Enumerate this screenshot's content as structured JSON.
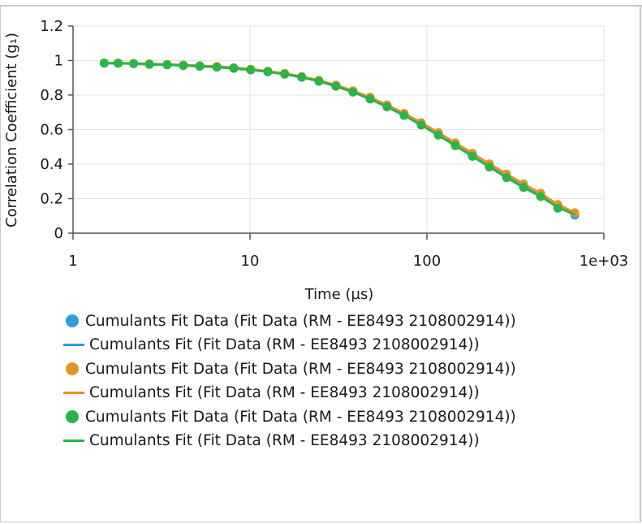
{
  "chart_data": {
    "type": "scatter",
    "title": "",
    "xlabel": "Time (µs)",
    "ylabel": "Correlation Coefficient (g₁)",
    "x_scale": "log",
    "xlim": [
      1,
      1000
    ],
    "ylim": [
      0,
      1.2
    ],
    "x_ticks": [
      1,
      10,
      100,
      1000
    ],
    "x_tick_labels": [
      "1",
      "10",
      "100",
      "1e+03"
    ],
    "y_ticks": [
      0,
      0.2,
      0.4,
      0.6,
      0.8,
      1,
      1.2
    ],
    "y_tick_labels": [
      "0",
      "0.2",
      "0.4",
      "0.6",
      "0.8",
      "1",
      "1.2"
    ],
    "grid": true,
    "legend_position": "bottom",
    "series": [
      {
        "name": "Cumulants Fit Data (Fit Data (RM - EE8493 2108002914))",
        "kind": "points",
        "color": "#2e9fd8",
        "x": [
          1.5,
          1.8,
          2.2,
          2.7,
          3.4,
          4.2,
          5.2,
          6.5,
          8.1,
          10.1,
          12.6,
          15.7,
          19.6,
          24.5,
          30.6,
          38.2,
          47.7,
          59.5,
          74.3,
          92.8,
          115.9,
          144.7,
          180.7,
          225.6,
          281.8,
          351.8,
          439.3,
          548.6,
          685
        ],
        "y": [
          0.985,
          0.984,
          0.982,
          0.979,
          0.976,
          0.972,
          0.968,
          0.963,
          0.956,
          0.947,
          0.936,
          0.922,
          0.904,
          0.881,
          0.853,
          0.819,
          0.78,
          0.736,
          0.686,
          0.631,
          0.573,
          0.512,
          0.45,
          0.389,
          0.329,
          0.272,
          0.22,
          0.165,
          0.105
        ]
      },
      {
        "name": "Cumulants Fit (Fit Data (RM - EE8493 2108002914))",
        "kind": "line",
        "color": "#2e9fd8",
        "x": [
          1.5,
          1.8,
          2.2,
          2.7,
          3.4,
          4.2,
          5.2,
          6.5,
          8.1,
          10.1,
          12.6,
          15.7,
          19.6,
          24.5,
          30.6,
          38.2,
          47.7,
          59.5,
          74.3,
          92.8,
          115.9,
          144.7,
          180.7,
          225.6,
          281.8,
          351.8,
          439.3,
          548.6,
          685
        ],
        "y": [
          0.985,
          0.984,
          0.982,
          0.979,
          0.976,
          0.972,
          0.968,
          0.963,
          0.956,
          0.947,
          0.936,
          0.922,
          0.904,
          0.881,
          0.853,
          0.819,
          0.78,
          0.736,
          0.686,
          0.631,
          0.573,
          0.512,
          0.45,
          0.389,
          0.329,
          0.272,
          0.22,
          0.165,
          0.105
        ]
      },
      {
        "name": "Cumulants Fit Data (Fit Data (RM - EE8493 2108002914))",
        "kind": "points",
        "color": "#e0952a",
        "x": [
          1.5,
          1.8,
          2.2,
          2.7,
          3.4,
          4.2,
          5.2,
          6.5,
          8.1,
          10.1,
          12.6,
          15.7,
          19.6,
          24.5,
          30.6,
          38.2,
          47.7,
          59.5,
          74.3,
          92.8,
          115.9,
          144.7,
          180.7,
          225.6,
          281.8,
          351.8,
          439.3,
          548.6,
          685
        ],
        "y": [
          0.986,
          0.985,
          0.983,
          0.981,
          0.978,
          0.974,
          0.97,
          0.965,
          0.958,
          0.949,
          0.938,
          0.925,
          0.907,
          0.885,
          0.858,
          0.825,
          0.787,
          0.743,
          0.694,
          0.64,
          0.583,
          0.523,
          0.462,
          0.401,
          0.342,
          0.285,
          0.231,
          0.166,
          0.118
        ]
      },
      {
        "name": "Cumulants Fit (Fit Data (RM - EE8493 2108002914))",
        "kind": "line",
        "color": "#e0952a",
        "x": [
          1.5,
          1.8,
          2.2,
          2.7,
          3.4,
          4.2,
          5.2,
          6.5,
          8.1,
          10.1,
          12.6,
          15.7,
          19.6,
          24.5,
          30.6,
          38.2,
          47.7,
          59.5,
          74.3,
          92.8,
          115.9,
          144.7,
          180.7,
          225.6,
          281.8,
          351.8,
          439.3,
          548.6,
          685
        ],
        "y": [
          0.986,
          0.985,
          0.983,
          0.981,
          0.978,
          0.974,
          0.97,
          0.965,
          0.958,
          0.949,
          0.938,
          0.925,
          0.907,
          0.885,
          0.858,
          0.825,
          0.787,
          0.743,
          0.694,
          0.64,
          0.583,
          0.523,
          0.462,
          0.401,
          0.342,
          0.285,
          0.231,
          0.166,
          0.118
        ]
      },
      {
        "name": "Cumulants Fit Data (Fit Data (RM - EE8493 2108002914))",
        "kind": "points",
        "color": "#2db34a",
        "x": [
          1.5,
          1.8,
          2.2,
          2.7,
          3.4,
          4.2,
          5.2,
          6.5,
          8.1,
          10.1,
          12.6,
          15.7,
          19.6,
          24.5,
          30.6,
          38.2,
          47.7,
          59.5,
          74.3,
          92.8,
          115.9,
          144.7,
          180.7,
          225.6,
          281.8,
          351.8,
          439.3,
          548.6
        ],
        "y": [
          0.985,
          0.984,
          0.982,
          0.978,
          0.975,
          0.971,
          0.967,
          0.962,
          0.955,
          0.946,
          0.935,
          0.921,
          0.903,
          0.88,
          0.851,
          0.817,
          0.777,
          0.732,
          0.682,
          0.627,
          0.568,
          0.507,
          0.445,
          0.383,
          0.322,
          0.265,
          0.212,
          0.144
        ]
      },
      {
        "name": "Cumulants Fit (Fit Data (RM - EE8493 2108002914))",
        "kind": "line",
        "color": "#2db34a",
        "x": [
          1.5,
          1.8,
          2.2,
          2.7,
          3.4,
          4.2,
          5.2,
          6.5,
          8.1,
          10.1,
          12.6,
          15.7,
          19.6,
          24.5,
          30.6,
          38.2,
          47.7,
          59.5,
          74.3,
          92.8,
          115.9,
          144.7,
          180.7,
          225.6,
          281.8,
          351.8,
          439.3,
          548.6,
          685
        ],
        "y": [
          0.985,
          0.984,
          0.982,
          0.978,
          0.975,
          0.971,
          0.967,
          0.962,
          0.955,
          0.946,
          0.935,
          0.921,
          0.903,
          0.88,
          0.851,
          0.817,
          0.777,
          0.732,
          0.682,
          0.627,
          0.568,
          0.507,
          0.445,
          0.383,
          0.322,
          0.265,
          0.212,
          0.15,
          0.108
        ]
      }
    ]
  }
}
